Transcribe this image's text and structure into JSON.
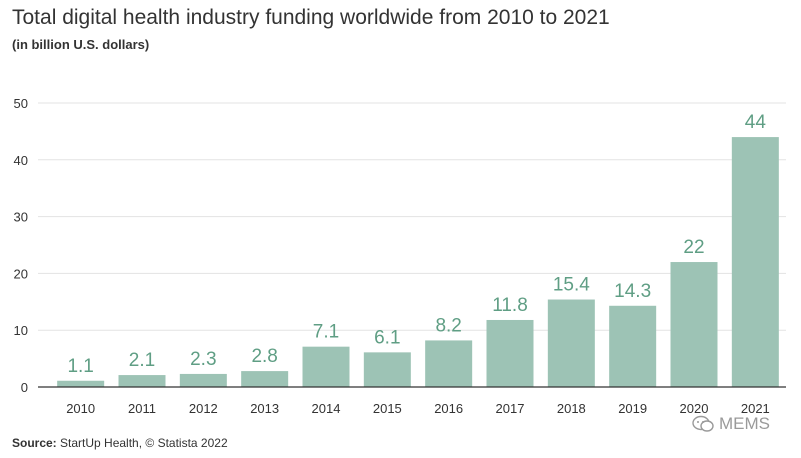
{
  "title": "Total digital health industry funding worldwide from 2010 to 2021",
  "subtitle": "(in billion U.S. dollars)",
  "source": {
    "label": "Source:",
    "text": "StartUp Health, © Statista 2022"
  },
  "watermark": {
    "text": "MEMS",
    "icon": "chat-bubble-icon"
  },
  "colors": {
    "bar": "#9dc3b5",
    "label": "#5f9e84",
    "grid": "#e3e3e3",
    "axis": "#333333"
  },
  "chart_data": {
    "type": "bar",
    "categories": [
      "2010",
      "2011",
      "2012",
      "2013",
      "2014",
      "2015",
      "2016",
      "2017",
      "2018",
      "2019",
      "2020",
      "2021"
    ],
    "values": [
      1.1,
      2.1,
      2.3,
      2.8,
      7.1,
      6.1,
      8.2,
      11.8,
      15.4,
      14.3,
      22,
      44
    ],
    "data_labels": [
      "1.1",
      "2.1",
      "2.3",
      "2.8",
      "7.1",
      "6.1",
      "8.2",
      "11.8",
      "15.4",
      "14.3",
      "22",
      "44"
    ],
    "yticks": [
      0,
      10,
      20,
      30,
      40,
      50
    ],
    "ylim": [
      0,
      50
    ],
    "grid": true,
    "legend": "none"
  }
}
